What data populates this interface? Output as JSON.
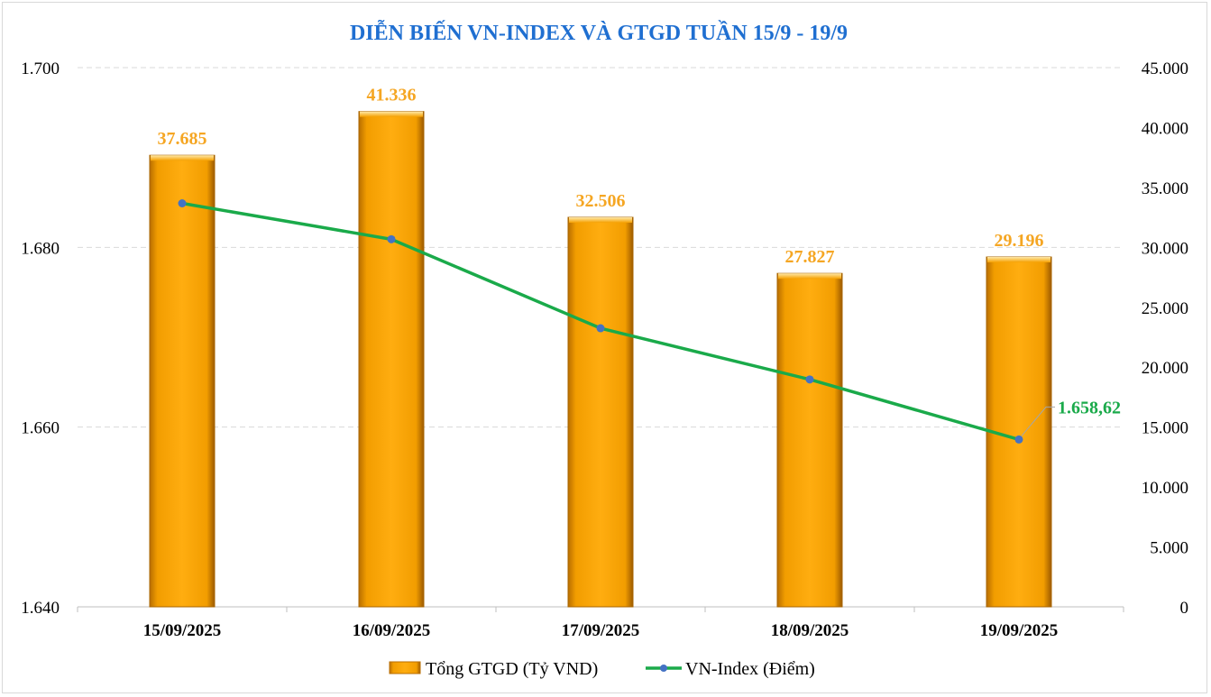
{
  "chart_data": {
    "type": "bar",
    "title": "DIỄN BIẾN VN-INDEX VÀ GTGD TUẦN 15/9 - 19/9",
    "categories": [
      "15/09/2025",
      "16/09/2025",
      "17/09/2025",
      "18/09/2025",
      "19/09/2025"
    ],
    "series": [
      {
        "name": "Tổng GTGD (Tỷ VND)",
        "type": "bar",
        "axis": "right",
        "values": [
          37685,
          41336,
          32506,
          27827,
          29196
        ],
        "labels": [
          "37.685",
          "41.336",
          "32.506",
          "27.827",
          "29.196"
        ],
        "color": "#f5a000"
      },
      {
        "name": "VN-Index (Điểm)",
        "type": "line",
        "axis": "left",
        "values": [
          1684.9,
          1680.9,
          1671.0,
          1665.3,
          1658.62
        ],
        "end_label": "1.658,62",
        "color": "#1aaa4a",
        "marker_color": "#4472c4"
      }
    ],
    "y_left": {
      "range": [
        1640,
        1700
      ],
      "ticks": [
        1640,
        1660,
        1680,
        1700
      ],
      "tick_labels": [
        "1.640",
        "1.660",
        "1.680",
        "1.700"
      ]
    },
    "y_right": {
      "range": [
        0,
        45000
      ],
      "ticks": [
        0,
        5000,
        10000,
        15000,
        20000,
        25000,
        30000,
        35000,
        40000,
        45000
      ],
      "tick_labels": [
        "0",
        "5.000",
        "10.000",
        "15.000",
        "20.000",
        "25.000",
        "30.000",
        "35.000",
        "40.000",
        "45.000"
      ]
    },
    "grid": true,
    "legend": "bottom"
  }
}
